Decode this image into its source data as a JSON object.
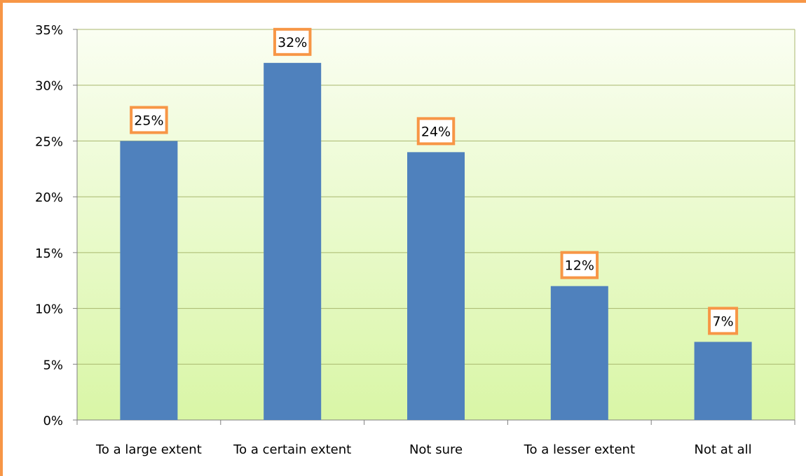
{
  "chart_data": {
    "type": "bar",
    "title": "",
    "xlabel": "",
    "ylabel": "",
    "categories": [
      "To a large extent",
      "To a certain extent",
      "Not sure",
      "To a lesser extent",
      "Not at all"
    ],
    "values": [
      25,
      32,
      24,
      12,
      7
    ],
    "data_labels": [
      "25%",
      "32%",
      "24%",
      "12%",
      "7%"
    ],
    "ylim": [
      0,
      35
    ],
    "yticks": [
      0,
      5,
      10,
      15,
      20,
      25,
      30,
      35
    ],
    "ytick_labels": [
      "0%",
      "5%",
      "10%",
      "15%",
      "20%",
      "25%",
      "30%",
      "35%"
    ],
    "grid": true,
    "legend": "none",
    "colors": {
      "bar": "#4F81BD",
      "label_border": "#F79646",
      "frame_border": "#F79646",
      "plot_bg_top": "#FAFEF2",
      "plot_bg_bottom": "#D9F6A6",
      "gridline": "#A9B76E"
    }
  }
}
